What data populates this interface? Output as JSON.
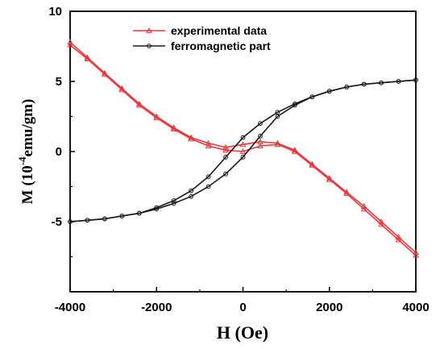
{
  "chart_data": {
    "type": "line",
    "xlabel_main": "H (Oe)",
    "ylabel_main": "M (10",
    "ylabel_exp": "-4",
    "ylabel_tail": "emu/gm)",
    "xlim": [
      -4000,
      4000
    ],
    "ylim": [
      -10,
      10
    ],
    "xticks": [
      -4000,
      -2000,
      0,
      2000,
      4000
    ],
    "yticks": [
      -5,
      0,
      5,
      10
    ],
    "legend_position": "top-center",
    "grid": false,
    "series": [
      {
        "name": "experimental data",
        "color": "#e8393f",
        "marker": "triangle-open",
        "branches": [
          {
            "x": [
              -4000,
              -3600,
              -3200,
              -2800,
              -2400,
              -2000,
              -1600,
              -1200,
              -800,
              -400,
              0,
              400,
              800,
              1200,
              1600,
              2000,
              2400,
              2800,
              3200,
              3600,
              4000
            ],
            "y": [
              7.6,
              6.6,
              5.5,
              4.4,
              3.3,
              2.4,
              1.6,
              0.9,
              0.4,
              0.1,
              0.0,
              0.4,
              0.5,
              0.0,
              -1.0,
              -2.0,
              -3.0,
              -4.1,
              -5.2,
              -6.3,
              -7.4
            ]
          },
          {
            "x": [
              4000,
              3600,
              3200,
              2800,
              2400,
              2000,
              1600,
              1200,
              800,
              400,
              0,
              -400,
              -800,
              -1200,
              -1600,
              -2000,
              -2400,
              -2800,
              -3200,
              -3600,
              -4000
            ],
            "y": [
              -7.2,
              -6.1,
              -5.0,
              -3.9,
              -2.9,
              -1.9,
              -0.9,
              0.1,
              0.6,
              0.7,
              0.5,
              0.3,
              0.6,
              1.0,
              1.7,
              2.5,
              3.4,
              4.5,
              5.6,
              6.7,
              7.8
            ]
          }
        ]
      },
      {
        "name": "ferromagnetic part",
        "color": "#1a1a1a",
        "marker": "circle-open",
        "branches": [
          {
            "x": [
              -4000,
              -3600,
              -3200,
              -2800,
              -2400,
              -2000,
              -1600,
              -1200,
              -800,
              -400,
              0,
              400,
              800,
              1200,
              1600,
              2000,
              2400,
              2800,
              3200,
              3600,
              4000
            ],
            "y": [
              -5.0,
              -4.9,
              -4.8,
              -4.6,
              -4.4,
              -4.1,
              -3.7,
              -3.2,
              -2.5,
              -1.6,
              -0.4,
              1.1,
              2.5,
              3.3,
              3.9,
              4.3,
              4.6,
              4.8,
              4.9,
              5.0,
              5.1
            ]
          },
          {
            "x": [
              4000,
              3600,
              3200,
              2800,
              2400,
              2000,
              1600,
              1200,
              800,
              400,
              0,
              -400,
              -800,
              -1200,
              -1600,
              -2000,
              -2400,
              -2800,
              -3200,
              -3600,
              -4000
            ],
            "y": [
              5.1,
              5.0,
              4.9,
              4.8,
              4.6,
              4.3,
              3.9,
              3.4,
              2.8,
              2.0,
              1.0,
              -0.4,
              -1.8,
              -2.8,
              -3.5,
              -4.0,
              -4.4,
              -4.6,
              -4.8,
              -4.9,
              -5.0
            ]
          }
        ]
      }
    ]
  }
}
